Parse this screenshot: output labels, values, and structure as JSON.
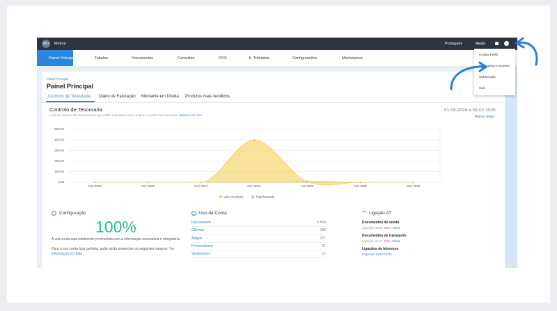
{
  "top_bar": {
    "avatar": "MO",
    "account": "Moloni",
    "language": "Português",
    "help": "Ajuda"
  },
  "menu": [
    "Painel Principal",
    "Tabelas",
    "Documentos",
    "Consultas",
    "POS",
    "A. Tributária",
    "Configurações",
    "Marketplace"
  ],
  "user_menu": [
    "O Meu Perfil",
    "Segurança e acesso",
    "Subscrição",
    "Sair"
  ],
  "breadcrumb": "Painel Principal",
  "page_title": "Painel Principal",
  "tabs": [
    "Controlo de Tesouraria",
    "Diário de Faturação",
    "Montante em Dívida",
    "Produtos mais vendidos"
  ],
  "chart_data": {
    "type": "area",
    "title": "Controlo de Tesouraria",
    "subtitle": "Lista os valores dos documentos que estão marcados como pagos e o valor total faturado.",
    "subtitle_link": "Valores com IVA",
    "date_range": "01-09-2024 a 03-02-2025",
    "date_action": "Alterar datas",
    "categories": [
      "Sep 2024",
      "Oct 2024",
      "Nov 2024",
      "Dec 2024",
      "Jan 2025",
      "Feb 2025",
      "Mar 2025"
    ],
    "series": [
      {
        "name": "Valor recebido",
        "color": "#f5cf5a",
        "values": [
          0,
          0,
          0,
          400,
          5,
          0,
          0
        ]
      },
      {
        "name": "Total faturado",
        "color": "#a9cfe6",
        "values": [
          0,
          0,
          0,
          0,
          10,
          0,
          0
        ]
      }
    ],
    "ylim": [
      0,
      500
    ],
    "yticks": [
      {
        "value": 0,
        "label": "0,0€"
      },
      {
        "value": 100,
        "label": "100,0€"
      },
      {
        "value": 200,
        "label": "200,0€"
      },
      {
        "value": 300,
        "label": "300,0€"
      },
      {
        "value": 400,
        "label": "400,0€"
      },
      {
        "value": 500,
        "label": "500,0€"
      }
    ],
    "grid": true
  },
  "configuracao": {
    "title": "Configuração",
    "percent": "100%",
    "text": "A sua conta está totalmente preenchida com a informação necessária e obrigatória.",
    "text2": "Para a sua conta ficar perfeita, pode ainda preencher os seguintes campos:",
    "link": "Ver informação em falta"
  },
  "uso_da_conta": {
    "title": "Uso da Conta",
    "rows": [
      [
        "Documentos",
        "6.564"
      ],
      [
        "Clientes",
        "156"
      ],
      [
        "Artigos",
        "271"
      ],
      [
        "Fornecedores",
        "21"
      ],
      [
        "Vendedores",
        "17"
      ]
    ]
  },
  "ligacao_at": {
    "title": "Ligação AT",
    "sections": [
      {
        "heading": "Documentos de venda",
        "status_label": "Ligação ativa:",
        "status": "Não",
        "action": "Ativar"
      },
      {
        "heading": "Documentos de transporte",
        "status_label": "Ligação ativa:",
        "status": "Não",
        "action": "Ativar"
      }
    ],
    "interest_heading": "Ligações de Interesse",
    "interest_link": "Exportar SAF-T(PT)"
  }
}
